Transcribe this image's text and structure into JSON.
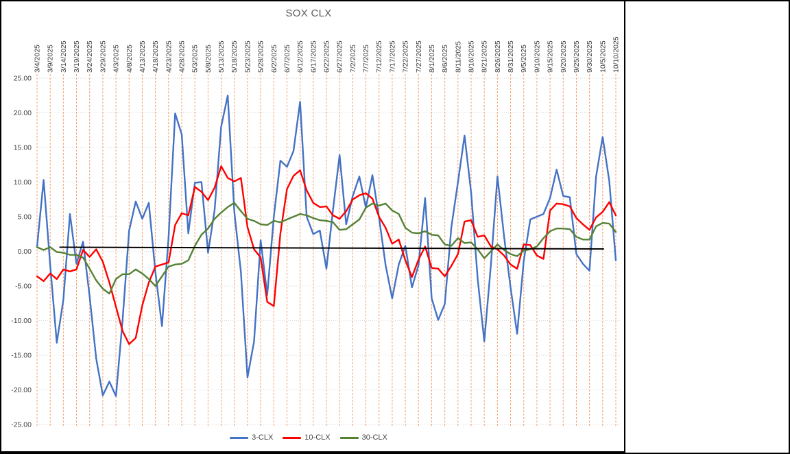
{
  "chart_data": {
    "type": "line",
    "title": "SOX CLX",
    "xlabel": "",
    "ylabel": "",
    "ylim": [
      -25,
      25
    ],
    "y_tick_step": 5,
    "y_tick_labels": [
      "25.00",
      "20.00",
      "15.00",
      "10.00",
      "5.00",
      "0.00",
      "-5.00",
      "-10.00",
      "-15.00",
      "-20.00",
      "-25.00"
    ],
    "x_labels": [
      "3/4/2025",
      "3/9/2025",
      "3/14/2025",
      "3/19/2025",
      "3/24/2025",
      "3/29/2025",
      "4/3/2025",
      "4/8/2025",
      "4/13/2025",
      "4/18/2025",
      "4/23/2025",
      "4/28/2025",
      "5/3/2025",
      "5/8/2025",
      "5/13/2025",
      "5/18/2025",
      "5/23/2025",
      "5/28/2025",
      "6/2/2025",
      "6/7/2025",
      "6/12/2025",
      "6/17/2025",
      "6/22/2025",
      "6/27/2025",
      "7/2/2025",
      "7/7/2025",
      "7/12/2025",
      "7/17/2025",
      "7/22/2025",
      "7/27/2025",
      "8/1/2025",
      "8/6/2025",
      "8/11/2025",
      "8/16/2025",
      "8/21/2025",
      "8/26/2025",
      "8/31/2025",
      "9/5/2025",
      "9/10/2025",
      "9/15/2025",
      "9/20/2025",
      "9/25/2025",
      "9/30/2025",
      "10/5/2025",
      "10/10/2025"
    ],
    "x_label_interval_days": 5,
    "total_days": 220,
    "sample_interval_days": 2.5,
    "grid": {
      "vertical_color": "#F2A470",
      "horizontal_color": "#D9D9D9"
    },
    "legend_position": "bottom",
    "series": [
      {
        "name": "3-CLX",
        "color": "#4472C4",
        "values": [
          0.6,
          10.3,
          -2.0,
          -13.2,
          -7.0,
          5.4,
          -1.8,
          1.4,
          -6.5,
          -15.5,
          -20.8,
          -18.8,
          -20.9,
          -10.0,
          3.0,
          7.2,
          4.7,
          7.0,
          -3.0,
          -10.8,
          2.0,
          19.9,
          16.9,
          2.6,
          9.9,
          10.0,
          -0.2,
          6.0,
          18.0,
          22.5,
          5.7,
          -3.0,
          -18.2,
          -13.0,
          1.6,
          -6.3,
          5.0,
          13.1,
          12.2,
          14.5,
          21.6,
          5.0,
          2.5,
          3.0,
          -2.5,
          6.0,
          13.9,
          3.9,
          8.0,
          10.8,
          6.3,
          11.0,
          4.9,
          -2.0,
          -6.8,
          -1.9,
          0.8,
          -5.2,
          -2.0,
          7.7,
          -6.8,
          -9.9,
          -7.6,
          3.5,
          10.0,
          16.7,
          8.5,
          -4.0,
          -13.0,
          -2.0,
          10.8,
          2.2,
          -5.2,
          -11.9,
          -1.4,
          4.6,
          5.0,
          5.4,
          7.7,
          11.8,
          8.0,
          7.8,
          -0.4,
          -1.8,
          -2.8,
          10.8,
          16.5,
          10.2,
          -1.3
        ]
      },
      {
        "name": "10-CLX",
        "color": "#FF0000",
        "values": [
          -3.6,
          -4.3,
          -3.2,
          -4.0,
          -2.6,
          -2.9,
          -2.6,
          0.2,
          -0.8,
          0.3,
          -1.5,
          -4.5,
          -8.0,
          -11.5,
          -13.4,
          -12.5,
          -7.8,
          -4.5,
          -2.2,
          -1.9,
          -1.6,
          3.8,
          5.5,
          5.2,
          9.3,
          8.6,
          7.4,
          9.2,
          12.3,
          10.6,
          10.1,
          10.6,
          3.5,
          0.3,
          -0.9,
          -7.3,
          -7.9,
          2.6,
          9.0,
          10.9,
          11.7,
          8.8,
          7.0,
          6.4,
          6.5,
          5.2,
          4.7,
          5.8,
          7.5,
          8.1,
          8.4,
          7.6,
          5.0,
          3.4,
          1.1,
          1.7,
          -1.3,
          -3.7,
          -1.2,
          0.7,
          -2.4,
          -2.5,
          -3.6,
          -2.1,
          -0.4,
          4.3,
          4.5,
          2.1,
          2.3,
          0.7,
          0.3,
          -0.6,
          -1.9,
          -2.5,
          1.0,
          0.9,
          -0.6,
          -1.1,
          5.9,
          6.9,
          6.8,
          6.5,
          4.8,
          3.9,
          3.1,
          4.9,
          5.7,
          7.1,
          5.2
        ]
      },
      {
        "name": "30-CLX",
        "color": "#548235",
        "values": [
          0.6,
          0.2,
          0.6,
          -0.1,
          -0.2,
          -0.5,
          -0.5,
          -0.9,
          -2.5,
          -4.2,
          -5.4,
          -6.1,
          -4.0,
          -3.3,
          -3.3,
          -2.6,
          -3.2,
          -4.0,
          -5.0,
          -3.6,
          -2.2,
          -1.9,
          -1.8,
          -1.3,
          0.8,
          2.4,
          3.3,
          4.7,
          5.6,
          6.4,
          7.0,
          5.8,
          4.7,
          4.4,
          3.9,
          3.8,
          4.4,
          4.2,
          4.6,
          5.0,
          5.4,
          5.2,
          4.8,
          4.5,
          4.4,
          4.2,
          3.1,
          3.2,
          3.9,
          4.6,
          6.3,
          6.9,
          6.6,
          6.9,
          5.9,
          5.4,
          3.4,
          2.7,
          2.6,
          2.9,
          2.4,
          2.3,
          1.0,
          0.8,
          1.9,
          1.2,
          1.3,
          0.3,
          -1.0,
          0.0,
          1.0,
          0.2,
          -0.4,
          -0.7,
          0.1,
          0.3,
          0.7,
          1.9,
          2.9,
          3.3,
          3.3,
          3.2,
          2.1,
          1.7,
          1.7,
          3.6,
          4.1,
          4.0,
          2.8
        ]
      }
    ],
    "baseline": {
      "name": "zero-reference-line",
      "color": "#000000",
      "start_day": 8.5,
      "end_day": 215.5,
      "start_value": 0.6,
      "end_value": 0.35
    }
  }
}
